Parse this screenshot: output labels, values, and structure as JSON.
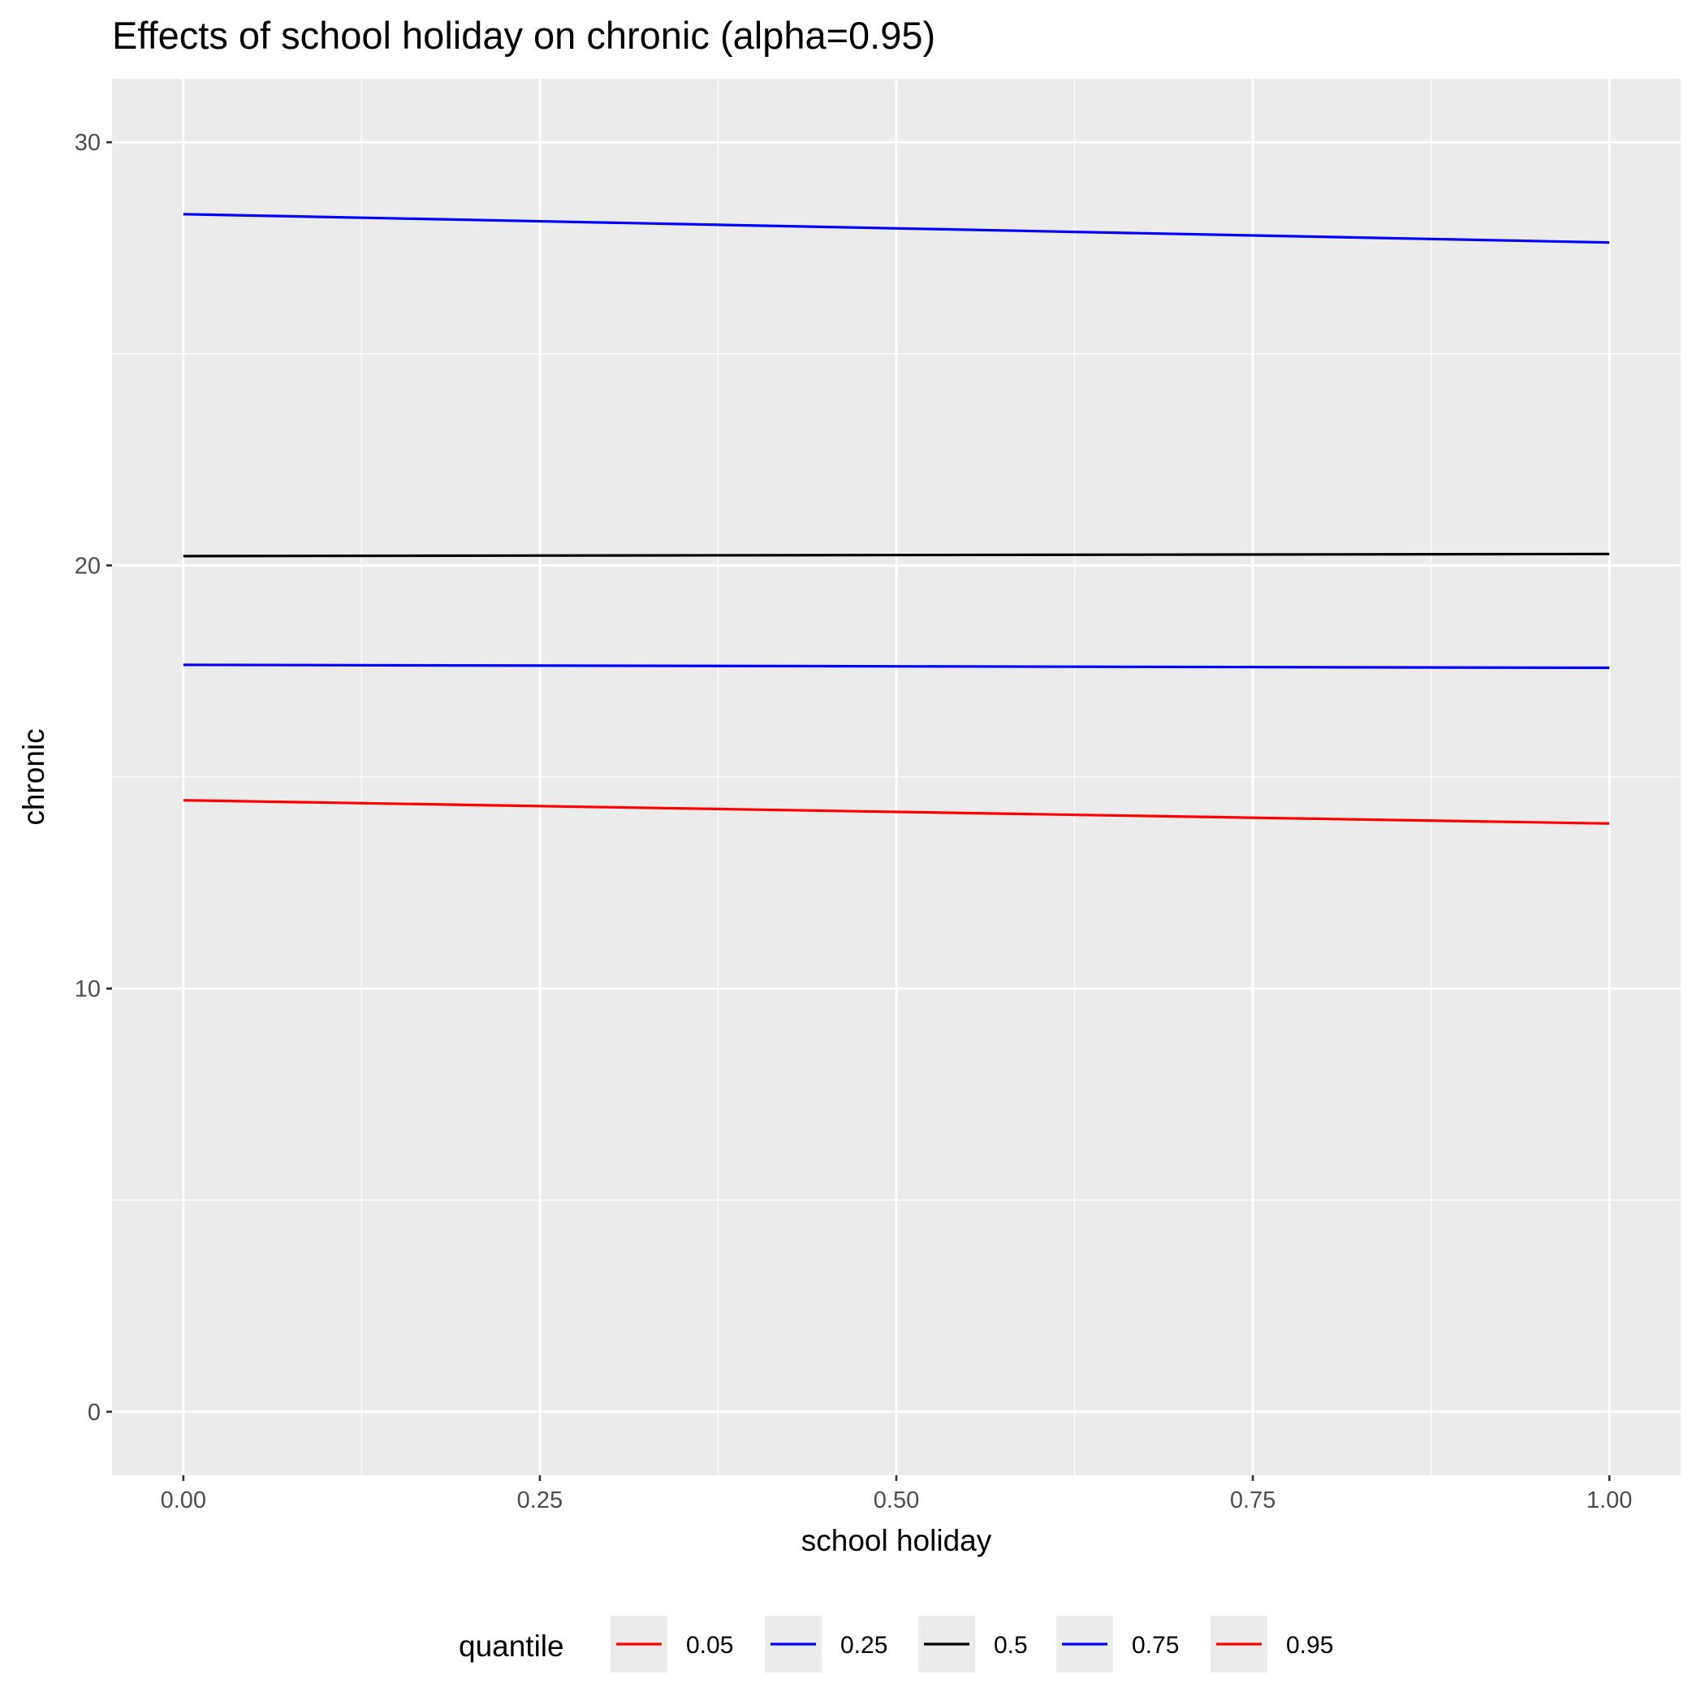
{
  "chart_data": {
    "type": "line",
    "title": "Effects of school holiday on chronic (alpha=0.95)",
    "xlabel": "school holiday",
    "ylabel": "chronic",
    "xlim": [
      -0.05,
      1.05
    ],
    "ylim": [
      -1.5,
      31.5
    ],
    "x_ticks": [
      0,
      0.25,
      0.5,
      0.75,
      1
    ],
    "x_tick_labels": [
      "0.00",
      "0.25",
      "0.50",
      "0.75",
      "1.00"
    ],
    "y_ticks": [
      0,
      10,
      20,
      30
    ],
    "y_tick_labels": [
      "0",
      "10",
      "20",
      "30"
    ],
    "grid": true,
    "legend": {
      "title": "quantile",
      "position": "bottom"
    },
    "series": [
      {
        "name": "0.05",
        "color": "#ff0000",
        "x": [
          0,
          1
        ],
        "y": [
          14.45,
          13.9
        ]
      },
      {
        "name": "0.25",
        "color": "#0000ff",
        "x": [
          0,
          1
        ],
        "y": [
          17.65,
          17.58
        ]
      },
      {
        "name": "0.5",
        "color": "#000000",
        "x": [
          0,
          1
        ],
        "y": [
          20.22,
          20.27
        ]
      },
      {
        "name": "0.75",
        "color": "#0000ff",
        "x": [
          0,
          1
        ],
        "y": [
          28.3,
          27.63
        ]
      },
      {
        "name": "0.95",
        "color": "#ff0000",
        "x": [
          0,
          1
        ],
        "y": [
          null,
          null
        ]
      }
    ]
  }
}
